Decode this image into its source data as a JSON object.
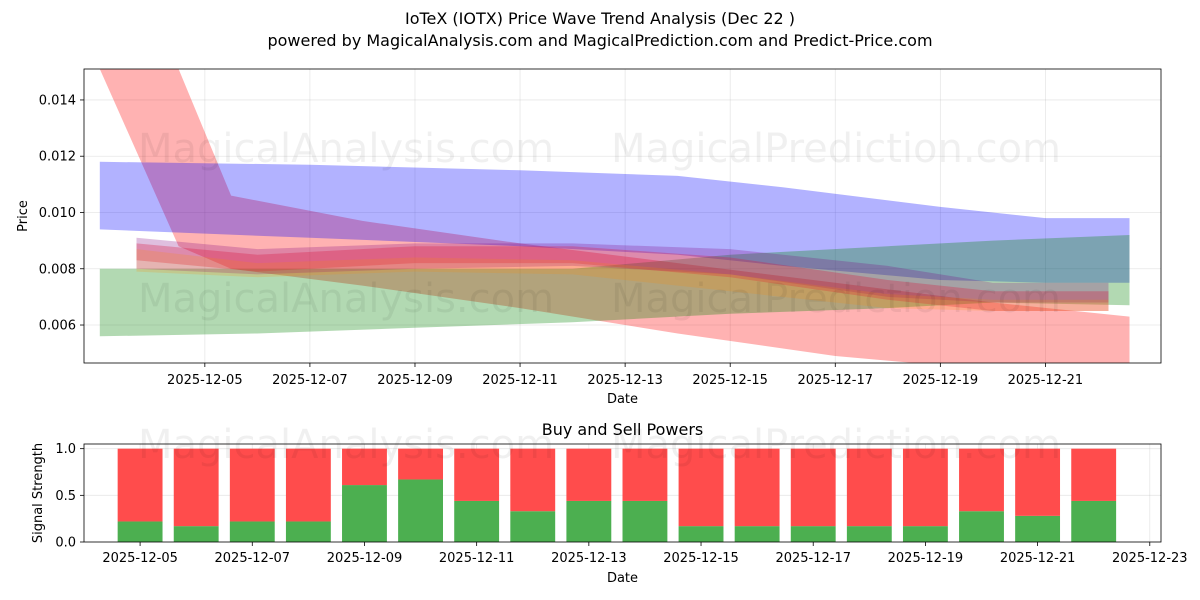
{
  "header": {
    "title": "IoTeX (IOTX) Price Wave Trend Analysis (Dec 22 )",
    "subtitle": "powered by MagicalAnalysis.com and MagicalPrediction.com and Predict-Price.com"
  },
  "watermarks": [
    "MagicalAnalysis.com",
    "MagicalPrediction.com"
  ],
  "chart_data": [
    {
      "type": "area",
      "title": "",
      "xlabel": "Date",
      "ylabel": "Price",
      "xlim": [
        "2025-12-02.7",
        "2025-12-23.2"
      ],
      "ylim": [
        0.00465,
        0.0151
      ],
      "grid": true,
      "x_ticks": [
        "2025-12-05",
        "2025-12-07",
        "2025-12-09",
        "2025-12-11",
        "2025-12-13",
        "2025-12-15",
        "2025-12-17",
        "2025-12-19",
        "2025-12-21"
      ],
      "y_ticks": [
        "0.006",
        "0.008",
        "0.010",
        "0.012",
        "0.014"
      ],
      "series": [
        {
          "name": "red wave",
          "color": "#ff0000",
          "opacity": 0.3,
          "x": [
            3.0,
            4.5,
            5.5,
            8,
            11,
            14,
            17,
            20,
            22.6
          ],
          "upper": [
            0.0151,
            0.0151,
            0.0106,
            0.0097,
            0.0089,
            0.0082,
            0.0075,
            0.0068,
            0.0063
          ],
          "lower": [
            0.0151,
            0.0088,
            0.008,
            0.0074,
            0.0066,
            0.0057,
            0.0049,
            0.0044,
            0.0042
          ]
        },
        {
          "name": "blue wave",
          "color": "#0000ff",
          "opacity": 0.3,
          "x": [
            3.0,
            7,
            11,
            14,
            16,
            19,
            21,
            22.6
          ],
          "upper": [
            0.0118,
            0.0117,
            0.0115,
            0.0113,
            0.0109,
            0.0102,
            0.0098,
            0.0098
          ],
          "lower": [
            0.0094,
            0.0091,
            0.0088,
            0.0085,
            0.0081,
            0.0076,
            0.0075,
            0.0075
          ]
        },
        {
          "name": "green wave",
          "color": "#008000",
          "opacity": 0.3,
          "x": [
            3.0,
            6,
            9,
            12,
            15,
            18,
            20,
            22.6
          ],
          "upper": [
            0.008,
            0.008,
            0.008,
            0.008,
            0.0085,
            0.0088,
            0.009,
            0.0092
          ],
          "lower": [
            0.0056,
            0.0057,
            0.0059,
            0.0061,
            0.0064,
            0.0066,
            0.0068,
            0.0067
          ]
        },
        {
          "name": "purple wave",
          "color": "#800080",
          "opacity": 0.25,
          "x": [
            3.7,
            6,
            9,
            12,
            15,
            18,
            20,
            22.2
          ],
          "upper": [
            0.0091,
            0.0087,
            0.0089,
            0.0089,
            0.0087,
            0.0081,
            0.0075,
            0.0075
          ],
          "lower": [
            0.008,
            0.0078,
            0.008,
            0.0081,
            0.0078,
            0.007,
            0.0068,
            0.0068
          ]
        },
        {
          "name": "crimson wave",
          "color": "#dc143c",
          "opacity": 0.3,
          "x": [
            3.7,
            6,
            9,
            12,
            15,
            18,
            20,
            22.2
          ],
          "upper": [
            0.0089,
            0.0085,
            0.0088,
            0.0088,
            0.0084,
            0.0076,
            0.0072,
            0.0072
          ],
          "lower": [
            0.0083,
            0.0079,
            0.0082,
            0.0082,
            0.0077,
            0.0069,
            0.0065,
            0.0065
          ]
        },
        {
          "name": "orange wave",
          "color": "#ff8c00",
          "opacity": 0.2,
          "x": [
            3.7,
            6,
            9,
            12,
            15,
            18,
            20,
            22.2
          ],
          "upper": [
            0.0087,
            0.0082,
            0.0084,
            0.0083,
            0.0078,
            0.0071,
            0.0069,
            0.0069
          ],
          "lower": [
            0.0079,
            0.0077,
            0.0079,
            0.0078,
            0.0072,
            0.0066,
            0.0065,
            0.0065
          ]
        }
      ]
    },
    {
      "type": "bar",
      "title": "Buy and Sell Powers",
      "xlabel": "Date",
      "ylabel": "Signal Strength",
      "xlim": [
        "2025-12-04.0",
        "2025-12-23.2"
      ],
      "ylim": [
        0,
        1.05
      ],
      "grid": true,
      "x_ticks": [
        "2025-12-05",
        "2025-12-07",
        "2025-12-09",
        "2025-12-11",
        "2025-12-13",
        "2025-12-15",
        "2025-12-17",
        "2025-12-19",
        "2025-12-21",
        "2025-12-23"
      ],
      "y_ticks": [
        "0.0",
        "0.5",
        "1.0"
      ],
      "categories": [
        "2025-12-05",
        "2025-12-06",
        "2025-12-07",
        "2025-12-08",
        "2025-12-09",
        "2025-12-10",
        "2025-12-11",
        "2025-12-12",
        "2025-12-13",
        "2025-12-14",
        "2025-12-15",
        "2025-12-16",
        "2025-12-17",
        "2025-12-18",
        "2025-12-19",
        "2025-12-20",
        "2025-12-21",
        "2025-12-22"
      ],
      "series": [
        {
          "name": "Buy",
          "color": "#4caf50",
          "values": [
            0.22,
            0.17,
            0.22,
            0.22,
            0.61,
            0.67,
            0.44,
            0.33,
            0.44,
            0.44,
            0.17,
            0.17,
            0.17,
            0.17,
            0.17,
            0.33,
            0.28,
            0.44
          ]
        },
        {
          "name": "Sell",
          "color": "#ff4c4c",
          "values": [
            0.78,
            0.83,
            0.78,
            0.78,
            0.39,
            0.33,
            0.56,
            0.67,
            0.56,
            0.56,
            0.83,
            0.83,
            0.83,
            0.83,
            0.83,
            0.67,
            0.72,
            0.56
          ]
        }
      ]
    }
  ]
}
